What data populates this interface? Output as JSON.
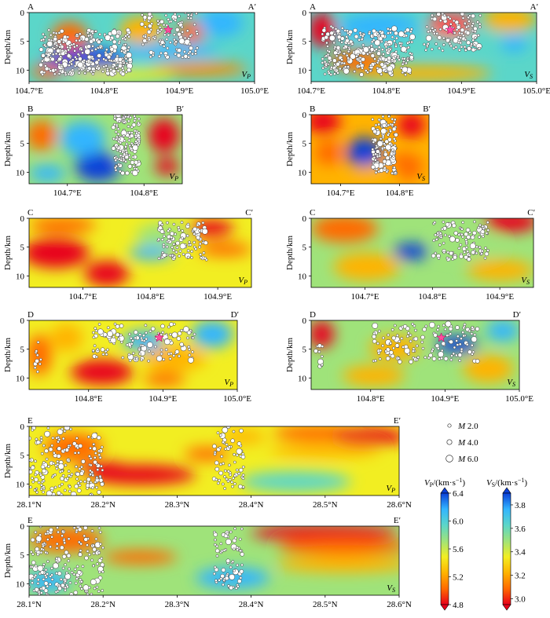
{
  "figure": {
    "colors": {
      "seismic_ramp": [
        "#e8001a",
        "#ff6a00",
        "#ffb300",
        "#f2ee22",
        "#9fe37a",
        "#5bd6c9",
        "#33b5ff",
        "#0a3fd8"
      ],
      "event_fill": "#ffffff",
      "event_stroke": "#333333",
      "mainshock": "#ff4d9d"
    },
    "panels": [
      {
        "id": "A-vp",
        "start": "A",
        "end": "A′",
        "param": "P",
        "x_ticks": [
          "104.7°E",
          "104.8°E",
          "104.9°E",
          "105.0°E"
        ],
        "x_tick_values": [
          104.7,
          104.8,
          104.9,
          105.0
        ],
        "x_range": [
          104.7,
          105.0
        ],
        "y_ticks": [
          "0",
          "5",
          "10"
        ],
        "y_range": [
          0,
          12
        ],
        "ylabel": "Depth/km",
        "star": [
          104.885,
          3
        ]
      },
      {
        "id": "A-vs",
        "start": "A",
        "end": "A′",
        "param": "S",
        "x_ticks": [
          "104.7°E",
          "104.8°E",
          "104.9°E",
          "105.0°E"
        ],
        "x_tick_values": [
          104.7,
          104.8,
          104.9,
          105.0
        ],
        "x_range": [
          104.7,
          105.0
        ],
        "y_ticks": [
          "0",
          "5",
          "10"
        ],
        "y_range": [
          0,
          12
        ],
        "ylabel": "Depth/km",
        "star": [
          104.885,
          3
        ]
      },
      {
        "id": "B-vp",
        "start": "B",
        "end": "B′",
        "param": "P",
        "x_ticks": [
          "104.7°E",
          "104.8°E"
        ],
        "x_tick_values": [
          104.7,
          104.8
        ],
        "x_range": [
          104.65,
          104.85
        ],
        "y_ticks": [
          "0",
          "5",
          "10"
        ],
        "y_range": [
          0,
          12
        ],
        "ylabel": "Depth/km",
        "star": null
      },
      {
        "id": "B-vs",
        "start": "B",
        "end": "B′",
        "param": "S",
        "x_ticks": [
          "104.7°E",
          "104.8°E"
        ],
        "x_tick_values": [
          104.7,
          104.8
        ],
        "x_range": [
          104.65,
          104.85
        ],
        "y_ticks": [
          "0",
          "5",
          "10"
        ],
        "y_range": [
          0,
          12
        ],
        "ylabel": "Depth/km",
        "star": null
      },
      {
        "id": "C-vp",
        "start": "C",
        "end": "C′",
        "param": "P",
        "x_ticks": [
          "104.7°E",
          "104.8°E",
          "104.9°E"
        ],
        "x_tick_values": [
          104.7,
          104.8,
          104.9
        ],
        "x_range": [
          104.62,
          104.95
        ],
        "y_ticks": [
          "0",
          "5",
          "10"
        ],
        "y_range": [
          0,
          12
        ],
        "ylabel": "Depth/km",
        "star": null
      },
      {
        "id": "C-vs",
        "start": "C",
        "end": "C′",
        "param": "S",
        "x_ticks": [
          "104.7°E",
          "104.8°E",
          "104.9°E"
        ],
        "x_tick_values": [
          104.7,
          104.8,
          104.9
        ],
        "x_range": [
          104.62,
          104.95
        ],
        "y_ticks": [
          "0",
          "5",
          "10"
        ],
        "y_range": [
          0,
          12
        ],
        "ylabel": "Depth/km",
        "star": null
      },
      {
        "id": "D-vp",
        "start": "D",
        "end": "D′",
        "param": "P",
        "x_ticks": [
          "104.8°E",
          "104.9°E",
          "105.0°E"
        ],
        "x_tick_values": [
          104.8,
          104.9,
          105.0
        ],
        "x_range": [
          104.72,
          105.0
        ],
        "y_ticks": [
          "0",
          "5",
          "10"
        ],
        "y_range": [
          0,
          12
        ],
        "ylabel": "Depth/km",
        "star": [
          104.895,
          3
        ]
      },
      {
        "id": "D-vs",
        "start": "D",
        "end": "D′",
        "param": "S",
        "x_ticks": [
          "104.8°E",
          "104.9°E",
          "105.0°E"
        ],
        "x_tick_values": [
          104.8,
          104.9,
          105.0
        ],
        "x_range": [
          104.72,
          105.0
        ],
        "y_ticks": [
          "0",
          "5",
          "10"
        ],
        "y_range": [
          0,
          12
        ],
        "ylabel": "Depth/km",
        "star": [
          104.895,
          3
        ]
      },
      {
        "id": "E-vp",
        "start": "E",
        "end": "E′",
        "param": "P",
        "x_ticks": [
          "28.1°N",
          "28.2°N",
          "28.3°N",
          "28.4°N",
          "28.5°N",
          "28.6°N"
        ],
        "x_tick_values": [
          28.1,
          28.2,
          28.3,
          28.4,
          28.5,
          28.6
        ],
        "x_range": [
          28.1,
          28.6
        ],
        "y_ticks": [
          "0",
          "5",
          "10"
        ],
        "y_range": [
          0,
          12
        ],
        "ylabel": "Depth/km",
        "star": null
      },
      {
        "id": "E-vs",
        "start": "E",
        "end": "E′",
        "param": "S",
        "x_ticks": [
          "28.1°N",
          "28.2°N",
          "28.3°N",
          "28.4°N",
          "28.5°N",
          "28.6°N"
        ],
        "x_tick_values": [
          28.1,
          28.2,
          28.3,
          28.4,
          28.5,
          28.6
        ],
        "x_range": [
          28.1,
          28.6
        ],
        "y_ticks": [
          "0",
          "5",
          "10"
        ],
        "y_range": [
          0,
          12
        ],
        "ylabel": "Depth/km",
        "star": null
      }
    ],
    "magnitude_legend": [
      {
        "label": "M 2.0",
        "m": "M",
        "value": "2.0"
      },
      {
        "label": "M 4.0",
        "m": "M",
        "value": "4.0"
      },
      {
        "label": "M 6.0",
        "m": "M",
        "value": "6.0"
      }
    ],
    "colorbars": [
      {
        "id": "vp",
        "label": "VP/(km·s⁻¹)",
        "sym": "V",
        "sub": "P",
        "unit": "/(km·s",
        "exp": "−1",
        "close": ")",
        "ticks": [
          "6.4",
          "6.0",
          "5.6",
          "5.2",
          "4.8"
        ],
        "tick_values": [
          6.4,
          6.0,
          5.6,
          5.2,
          4.8
        ],
        "range": [
          4.8,
          6.4
        ]
      },
      {
        "id": "vs",
        "label": "VS/(km·s⁻¹)",
        "sym": "V",
        "sub": "S",
        "unit": "/(km·s",
        "exp": "−1",
        "close": ")",
        "ticks": [
          "3.8",
          "3.6",
          "3.4",
          "3.2",
          "3.0"
        ],
        "tick_values": [
          3.8,
          3.6,
          3.4,
          3.2,
          3.0
        ],
        "range": [
          2.95,
          3.9
        ]
      }
    ]
  }
}
